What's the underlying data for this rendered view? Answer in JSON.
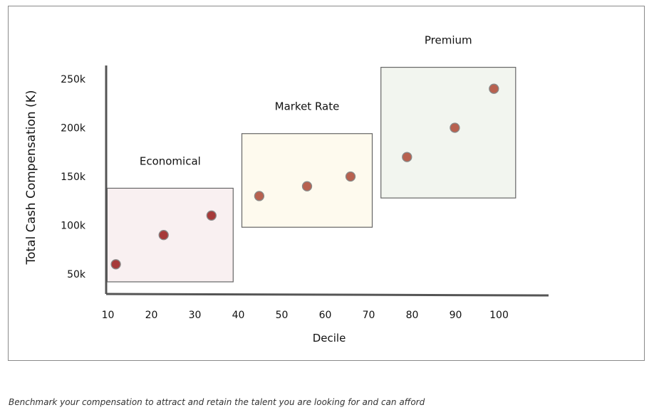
{
  "chart_data": {
    "type": "scatter",
    "title": "",
    "xlabel": "Decile",
    "ylabel": "Total Cash Compensation (K)",
    "xlim": [
      5,
      105
    ],
    "ylim": [
      35,
      265
    ],
    "x_ticks": [
      "10",
      "20",
      "30",
      "40",
      "50",
      "60",
      "70",
      "80",
      "90",
      "100"
    ],
    "x_tick_values": [
      10,
      20,
      30,
      40,
      50,
      60,
      70,
      80,
      90,
      100
    ],
    "y_ticks": [
      "50k",
      "100k",
      "150k",
      "200k",
      "250k"
    ],
    "y_tick_values": [
      50,
      100,
      150,
      200,
      250
    ],
    "grid": false,
    "groups": [
      {
        "label": "Economical",
        "box": {
          "x0": 9,
          "x1": 38,
          "y0": 42,
          "y1": 138
        },
        "fill": "#f9f0f1",
        "point_color": "#a63a3a",
        "points": [
          {
            "x": 11,
            "y": 60
          },
          {
            "x": 22,
            "y": 90
          },
          {
            "x": 33,
            "y": 110
          }
        ]
      },
      {
        "label": "Market Rate",
        "box": {
          "x0": 40,
          "x1": 70,
          "y0": 98,
          "y1": 194
        },
        "fill": "#fefaee",
        "point_color": "#b8614f",
        "points": [
          {
            "x": 44,
            "y": 130
          },
          {
            "x": 55,
            "y": 140
          },
          {
            "x": 65,
            "y": 150
          }
        ]
      },
      {
        "label": "Premium",
        "box": {
          "x0": 72,
          "x1": 103,
          "y0": 128,
          "y1": 262
        },
        "fill": "#f2f5ef",
        "point_color": "#b8614f",
        "points": [
          {
            "x": 78,
            "y": 170
          },
          {
            "x": 89,
            "y": 200
          },
          {
            "x": 98,
            "y": 240
          }
        ]
      }
    ]
  },
  "caption": "Benchmark your compensation to attract and retain the talent you are looking for and can afford"
}
